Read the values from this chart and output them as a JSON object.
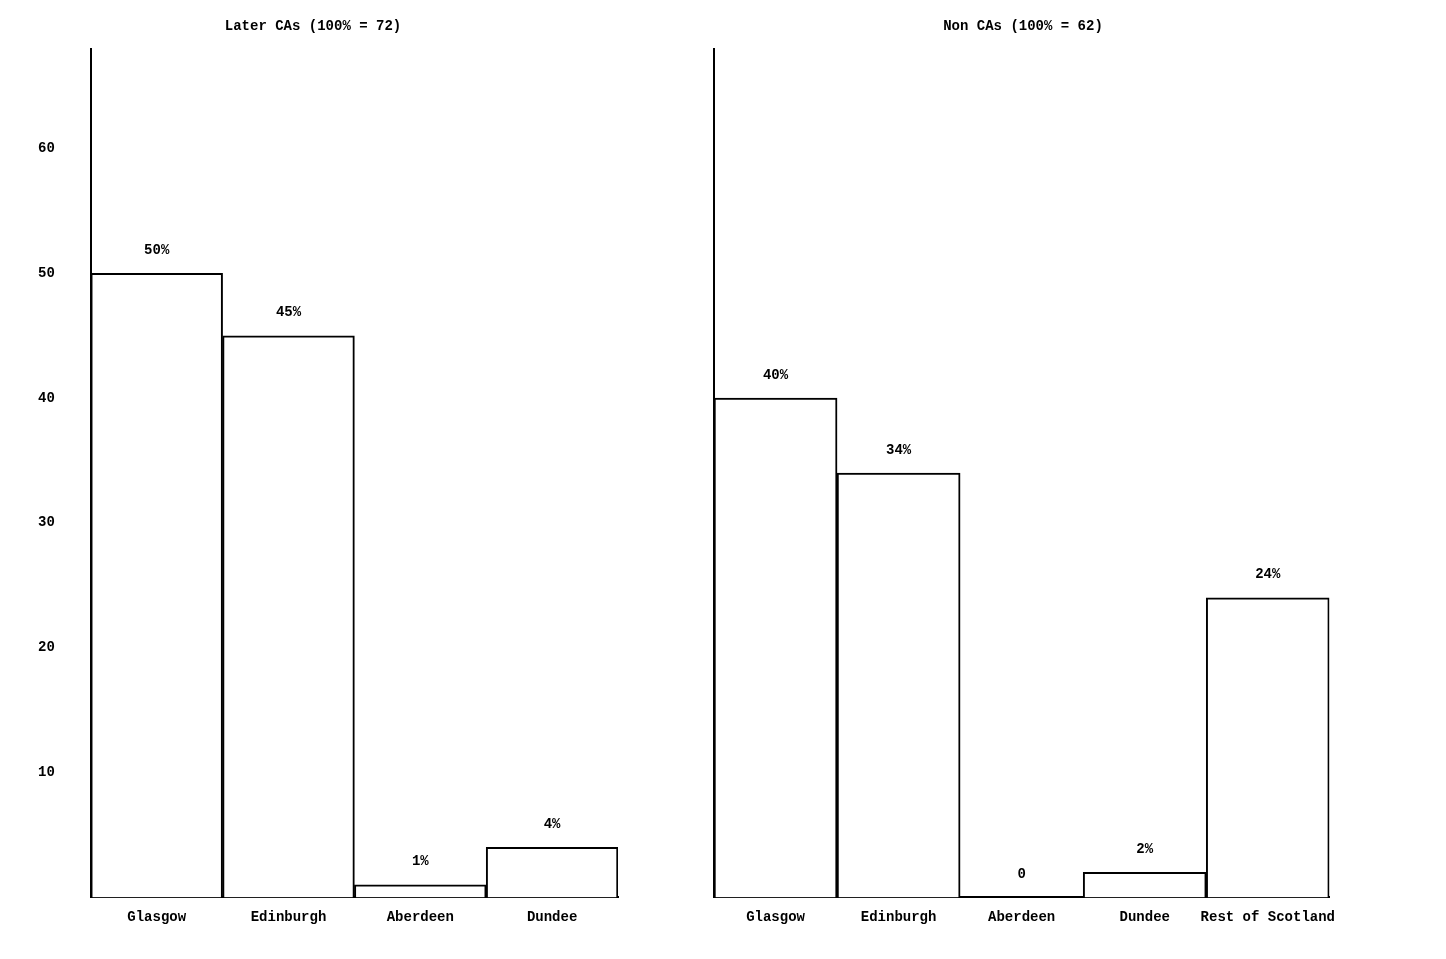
{
  "chart_data": [
    {
      "type": "bar",
      "title": "Later CAs (100% = 72)",
      "categories": [
        "Glasgow",
        "Edinburgh",
        "Aberdeen",
        "Dundee"
      ],
      "values": [
        50,
        45,
        1,
        4
      ],
      "value_labels": [
        "50%",
        "45%",
        "1%",
        "4%"
      ],
      "color": "#ffffff",
      "ylim": [
        0,
        68
      ],
      "yticks": [
        10,
        20,
        30,
        40,
        50,
        60
      ],
      "grid": false,
      "legend": false
    },
    {
      "type": "bar",
      "title": "Non CAs (100% = 62)",
      "categories": [
        "Glasgow",
        "Edinburgh",
        "Aberdeen",
        "Dundee",
        "Rest of Scotland"
      ],
      "values": [
        40,
        34,
        0,
        2,
        24
      ],
      "value_labels": [
        "40%",
        "34%",
        "0",
        "2%",
        "24%"
      ],
      "color": "#ffffff",
      "tick_labels": "x",
      "grid": false,
      "legend": false
    }
  ]
}
